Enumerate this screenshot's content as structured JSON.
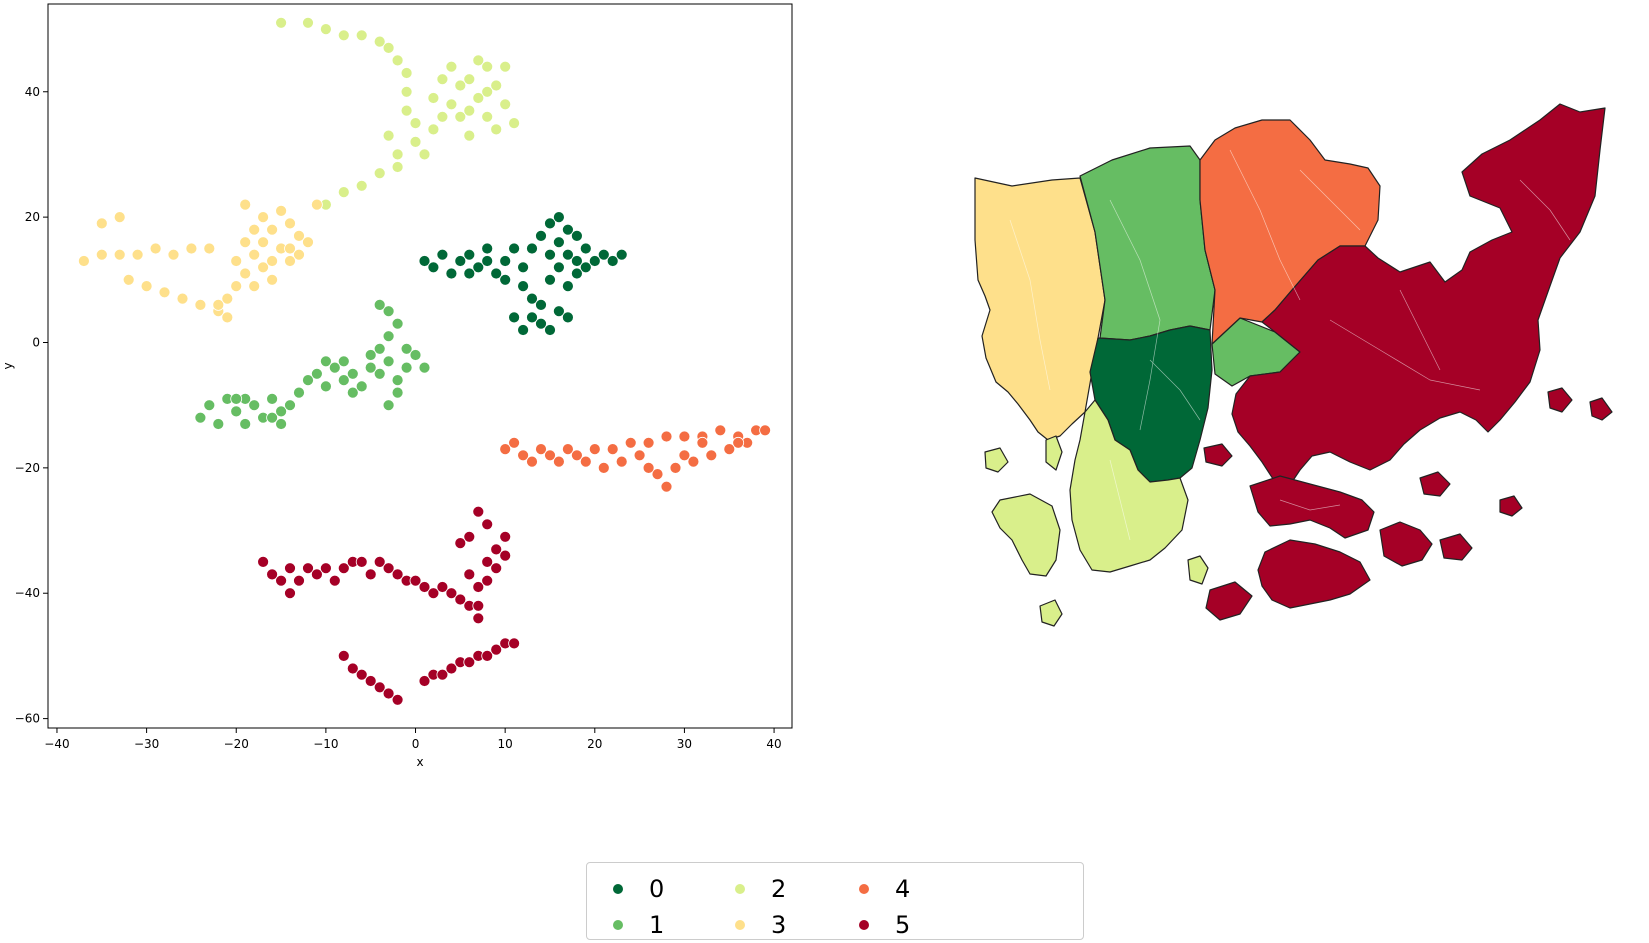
{
  "chart_data": [
    {
      "type": "scatter",
      "title": "",
      "xlabel": "x",
      "ylabel": "y",
      "xlim": [
        -41,
        42
      ],
      "ylim": [
        -61.5,
        54
      ],
      "xticks": [
        -40,
        -30,
        -20,
        -10,
        0,
        10,
        20,
        30,
        40
      ],
      "yticks": [
        -60,
        -40,
        -20,
        0,
        20,
        40
      ],
      "xtick_labels": [
        "−40",
        "−30",
        "−20",
        "−10",
        "0",
        "10",
        "20",
        "30",
        "40"
      ],
      "ytick_labels": [
        "−60",
        "−40",
        "−20",
        "0",
        "20",
        "40"
      ],
      "grid": false,
      "series": [
        {
          "name": "0",
          "color": "#006837",
          "points": [
            [
              1,
              13
            ],
            [
              2,
              12
            ],
            [
              3,
              14
            ],
            [
              4,
              11
            ],
            [
              5,
              13
            ],
            [
              6,
              14
            ],
            [
              7,
              12
            ],
            [
              8,
              13
            ],
            [
              9,
              11
            ],
            [
              10,
              13
            ],
            [
              11,
              15
            ],
            [
              12,
              12
            ],
            [
              12,
              9
            ],
            [
              13,
              15
            ],
            [
              13,
              7
            ],
            [
              14,
              17
            ],
            [
              14,
              6
            ],
            [
              14,
              3
            ],
            [
              15,
              19
            ],
            [
              15,
              14
            ],
            [
              15,
              10
            ],
            [
              16,
              20
            ],
            [
              16,
              16
            ],
            [
              16,
              12
            ],
            [
              16,
              5
            ],
            [
              17,
              18
            ],
            [
              17,
              14
            ],
            [
              17,
              9
            ],
            [
              18,
              17
            ],
            [
              18,
              13
            ],
            [
              18,
              11
            ],
            [
              19,
              15
            ],
            [
              19,
              12
            ],
            [
              20,
              13
            ],
            [
              21,
              14
            ],
            [
              22,
              13
            ],
            [
              23,
              14
            ],
            [
              12,
              2
            ],
            [
              13,
              4
            ],
            [
              11,
              4
            ],
            [
              15,
              2
            ],
            [
              6,
              11
            ],
            [
              8,
              15
            ],
            [
              10,
              10
            ],
            [
              17,
              4
            ]
          ]
        },
        {
          "name": "1",
          "color": "#66bd63",
          "points": [
            [
              -24,
              -12
            ],
            [
              -23,
              -10
            ],
            [
              -22,
              -13
            ],
            [
              -21,
              -9
            ],
            [
              -20,
              -11
            ],
            [
              -19,
              -13
            ],
            [
              -19,
              -9
            ],
            [
              -18,
              -10
            ],
            [
              -17,
              -12
            ],
            [
              -16,
              -9
            ],
            [
              -15,
              -11
            ],
            [
              -15,
              -13
            ],
            [
              -14,
              -10
            ],
            [
              -13,
              -8
            ],
            [
              -12,
              -6
            ],
            [
              -11,
              -5
            ],
            [
              -10,
              -3
            ],
            [
              -10,
              -7
            ],
            [
              -9,
              -4
            ],
            [
              -8,
              -6
            ],
            [
              -7,
              -5
            ],
            [
              -7,
              -8
            ],
            [
              -6,
              -7
            ],
            [
              -5,
              -2
            ],
            [
              -4,
              -1
            ],
            [
              -4,
              -5
            ],
            [
              -3,
              1
            ],
            [
              -3,
              -3
            ],
            [
              -2,
              3
            ],
            [
              -2,
              -6
            ],
            [
              -1,
              -1
            ],
            [
              -1,
              -4
            ],
            [
              0,
              -2
            ],
            [
              1,
              -4
            ],
            [
              -3,
              5
            ],
            [
              -4,
              6
            ],
            [
              -2,
              -8
            ],
            [
              -3,
              -10
            ],
            [
              -5,
              -4
            ],
            [
              -8,
              -3
            ],
            [
              -16,
              -12
            ],
            [
              -20,
              -9
            ]
          ]
        },
        {
          "name": "2",
          "color": "#d9ef8b",
          "points": [
            [
              -15,
              51
            ],
            [
              -12,
              51
            ],
            [
              -10,
              50
            ],
            [
              -8,
              49
            ],
            [
              -6,
              49
            ],
            [
              -4,
              48
            ],
            [
              -3,
              47
            ],
            [
              -2,
              45
            ],
            [
              -1,
              43
            ],
            [
              -1,
              40
            ],
            [
              -1,
              37
            ],
            [
              0,
              35
            ],
            [
              0,
              32
            ],
            [
              1,
              30
            ],
            [
              2,
              34
            ],
            [
              2,
              39
            ],
            [
              3,
              42
            ],
            [
              4,
              44
            ],
            [
              4,
              38
            ],
            [
              5,
              41
            ],
            [
              5,
              36
            ],
            [
              6,
              42
            ],
            [
              6,
              33
            ],
            [
              7,
              39
            ],
            [
              7,
              45
            ],
            [
              8,
              44
            ],
            [
              8,
              36
            ],
            [
              9,
              41
            ],
            [
              9,
              34
            ],
            [
              10,
              38
            ],
            [
              10,
              44
            ],
            [
              11,
              35
            ],
            [
              -2,
              30
            ],
            [
              -4,
              27
            ],
            [
              -6,
              25
            ],
            [
              -8,
              24
            ],
            [
              -10,
              22
            ],
            [
              -3,
              33
            ],
            [
              -2,
              28
            ],
            [
              3,
              36
            ],
            [
              8,
              40
            ],
            [
              6,
              37
            ]
          ]
        },
        {
          "name": "3",
          "color": "#fee08b",
          "points": [
            [
              -37,
              13
            ],
            [
              -35,
              14
            ],
            [
              -33,
              14
            ],
            [
              -31,
              14
            ],
            [
              -29,
              15
            ],
            [
              -27,
              14
            ],
            [
              -25,
              15
            ],
            [
              -23,
              15
            ],
            [
              -33,
              20
            ],
            [
              -35,
              19
            ],
            [
              -32,
              10
            ],
            [
              -30,
              9
            ],
            [
              -28,
              8
            ],
            [
              -26,
              7
            ],
            [
              -24,
              6
            ],
            [
              -22,
              5
            ],
            [
              -21,
              4
            ],
            [
              -21,
              7
            ],
            [
              -20,
              9
            ],
            [
              -20,
              13
            ],
            [
              -19,
              16
            ],
            [
              -19,
              11
            ],
            [
              -18,
              18
            ],
            [
              -18,
              14
            ],
            [
              -17,
              20
            ],
            [
              -17,
              16
            ],
            [
              -17,
              12
            ],
            [
              -16,
              18
            ],
            [
              -16,
              10
            ],
            [
              -15,
              21
            ],
            [
              -15,
              15
            ],
            [
              -14,
              19
            ],
            [
              -14,
              13
            ],
            [
              -13,
              17
            ],
            [
              -13,
              14
            ],
            [
              -12,
              16
            ],
            [
              -11,
              22
            ],
            [
              -19,
              22
            ],
            [
              -22,
              6
            ],
            [
              -18,
              9
            ],
            [
              -16,
              13
            ],
            [
              -14,
              15
            ]
          ]
        },
        {
          "name": "4",
          "color": "#f46d43",
          "points": [
            [
              10,
              -17
            ],
            [
              12,
              -18
            ],
            [
              14,
              -17
            ],
            [
              16,
              -19
            ],
            [
              17,
              -17
            ],
            [
              18,
              -18
            ],
            [
              20,
              -17
            ],
            [
              22,
              -17
            ],
            [
              24,
              -16
            ],
            [
              26,
              -16
            ],
            [
              28,
              -15
            ],
            [
              30,
              -15
            ],
            [
              32,
              -15
            ],
            [
              34,
              -14
            ],
            [
              36,
              -15
            ],
            [
              38,
              -14
            ],
            [
              37,
              -16
            ],
            [
              35,
              -17
            ],
            [
              33,
              -18
            ],
            [
              31,
              -19
            ],
            [
              29,
              -20
            ],
            [
              27,
              -21
            ],
            [
              28,
              -23
            ],
            [
              26,
              -20
            ],
            [
              25,
              -18
            ],
            [
              23,
              -19
            ],
            [
              21,
              -20
            ],
            [
              19,
              -19
            ],
            [
              15,
              -18
            ],
            [
              13,
              -19
            ],
            [
              11,
              -16
            ],
            [
              39,
              -14
            ],
            [
              30,
              -18
            ],
            [
              32,
              -16
            ],
            [
              36,
              -16
            ]
          ]
        },
        {
          "name": "5",
          "color": "#a50026",
          "points": [
            [
              -17,
              -35
            ],
            [
              -16,
              -37
            ],
            [
              -15,
              -38
            ],
            [
              -14,
              -40
            ],
            [
              -13,
              -38
            ],
            [
              -12,
              -36
            ],
            [
              -11,
              -37
            ],
            [
              -10,
              -36
            ],
            [
              -9,
              -38
            ],
            [
              -8,
              -36
            ],
            [
              -7,
              -35
            ],
            [
              -6,
              -35
            ],
            [
              -5,
              -37
            ],
            [
              -4,
              -35
            ],
            [
              -3,
              -36
            ],
            [
              -2,
              -37
            ],
            [
              -1,
              -38
            ],
            [
              0,
              -38
            ],
            [
              1,
              -39
            ],
            [
              2,
              -40
            ],
            [
              3,
              -39
            ],
            [
              4,
              -40
            ],
            [
              5,
              -41
            ],
            [
              6,
              -42
            ],
            [
              6,
              -37
            ],
            [
              7,
              -39
            ],
            [
              7,
              -44
            ],
            [
              8,
              -38
            ],
            [
              8,
              -35
            ],
            [
              9,
              -36
            ],
            [
              9,
              -33
            ],
            [
              10,
              -31
            ],
            [
              10,
              -34
            ],
            [
              8,
              -29
            ],
            [
              7,
              -27
            ],
            [
              5,
              -32
            ],
            [
              6,
              -31
            ],
            [
              -8,
              -50
            ],
            [
              -7,
              -52
            ],
            [
              -6,
              -53
            ],
            [
              -5,
              -54
            ],
            [
              -4,
              -55
            ],
            [
              -3,
              -56
            ],
            [
              -2,
              -57
            ],
            [
              1,
              -54
            ],
            [
              2,
              -53
            ],
            [
              3,
              -53
            ],
            [
              4,
              -52
            ],
            [
              5,
              -51
            ],
            [
              6,
              -51
            ],
            [
              7,
              -50
            ],
            [
              8,
              -50
            ],
            [
              9,
              -49
            ],
            [
              10,
              -48
            ],
            [
              11,
              -48
            ],
            [
              -14,
              -36
            ],
            [
              7,
              -42
            ]
          ]
        }
      ]
    },
    {
      "type": "choropleth",
      "title": ""
    }
  ],
  "legend": {
    "placement": "bottom-center",
    "items": [
      {
        "label": "0",
        "color": "#006837"
      },
      {
        "label": "1",
        "color": "#66bd63"
      },
      {
        "label": "2",
        "color": "#d9ef8b"
      },
      {
        "label": "3",
        "color": "#fee08b"
      },
      {
        "label": "4",
        "color": "#f46d43"
      },
      {
        "label": "5",
        "color": "#a50026"
      }
    ]
  },
  "map": {
    "regions": [
      {
        "cluster": "0",
        "color": "#006837"
      },
      {
        "cluster": "1",
        "color": "#66bd63"
      },
      {
        "cluster": "2",
        "color": "#d9ef8b"
      },
      {
        "cluster": "3",
        "color": "#fee08b"
      },
      {
        "cluster": "4",
        "color": "#f46d43"
      },
      {
        "cluster": "5",
        "color": "#a50026"
      }
    ]
  }
}
